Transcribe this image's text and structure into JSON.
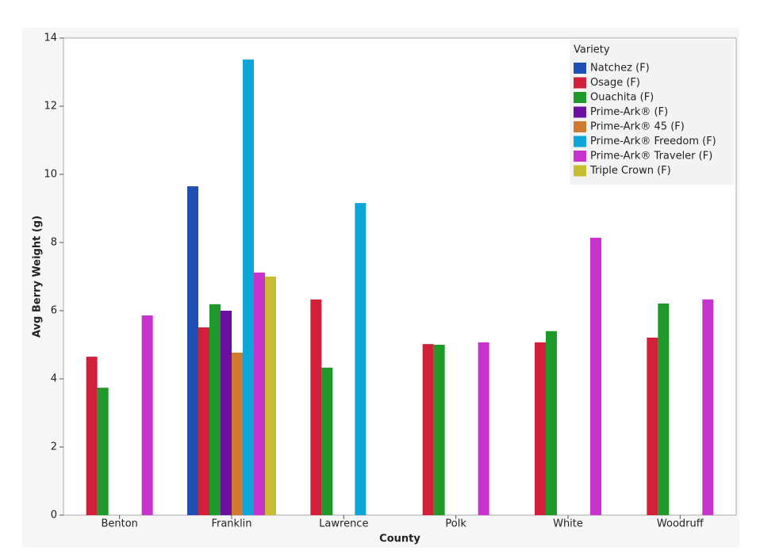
{
  "chart_data": {
    "type": "bar",
    "x_label": "County",
    "y_label": "Avg Berry Weight (g)",
    "legend_title": "Variety",
    "categories": [
      "Benton",
      "Franklin",
      "Lawrence",
      "Polk",
      "White",
      "Woodruff"
    ],
    "series": [
      {
        "name": "Natchez (F)",
        "color": "#1f4fb4",
        "values": [
          null,
          9.65,
          null,
          null,
          null,
          null
        ]
      },
      {
        "name": "Osage (F)",
        "color": "#d21f3a",
        "values": [
          4.65,
          5.51,
          6.33,
          5.02,
          5.07,
          5.21
        ]
      },
      {
        "name": "Ouachita (F)",
        "color": "#1f9a2a",
        "values": [
          3.74,
          6.19,
          4.33,
          5.0,
          5.4,
          6.21
        ]
      },
      {
        "name": "Prime-Ark® (F)",
        "color": "#6a0fa0",
        "values": [
          null,
          6.0,
          null,
          null,
          null,
          null
        ]
      },
      {
        "name": "Prime-Ark® 45 (F)",
        "color": "#d07a30",
        "values": [
          null,
          4.77,
          null,
          null,
          null,
          null
        ]
      },
      {
        "name": "Prime-Ark® Freedom (F)",
        "color": "#0ea5d8",
        "values": [
          null,
          13.37,
          9.16,
          null,
          null,
          null
        ]
      },
      {
        "name": "Prime-Ark® Traveler (F)",
        "color": "#c733cc",
        "values": [
          5.86,
          7.12,
          null,
          5.07,
          8.14,
          6.33
        ]
      },
      {
        "name": "Triple Crown (F)",
        "color": "#c8bd2f",
        "values": [
          null,
          7.0,
          null,
          null,
          null,
          null
        ]
      }
    ],
    "ylim": [
      0,
      14
    ],
    "yticks": [
      0,
      2,
      4,
      6,
      8,
      10,
      12,
      14
    ],
    "legend_position": "upper right"
  }
}
